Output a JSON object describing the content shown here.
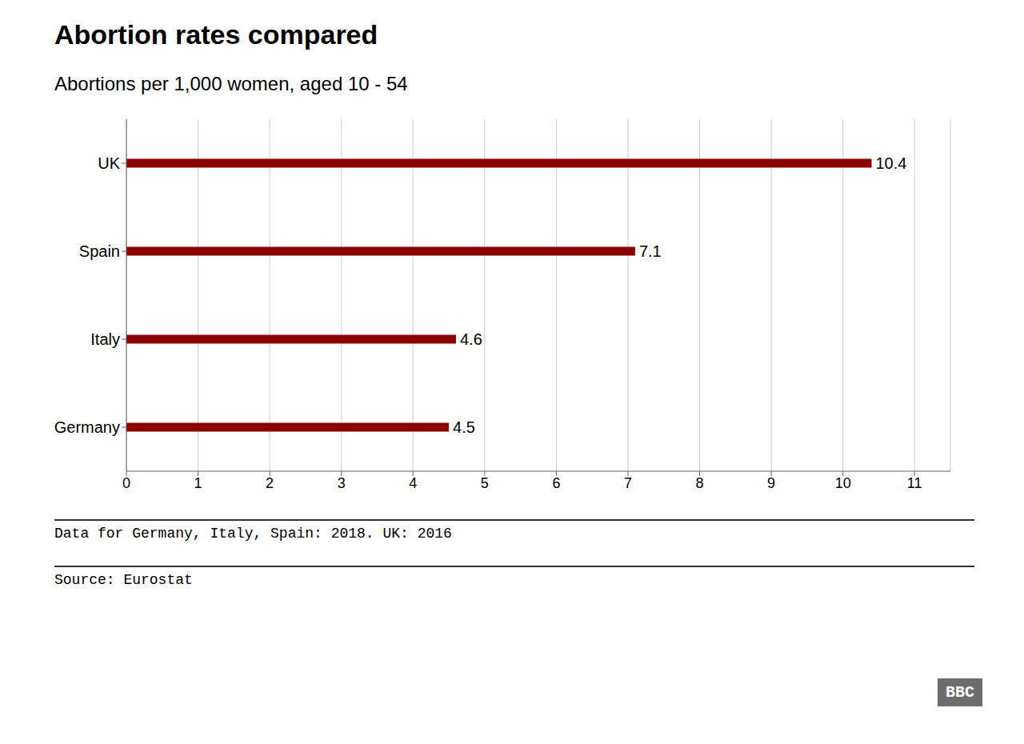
{
  "chart_data": {
    "type": "bar",
    "orientation": "horizontal",
    "title": "Abortion rates compared",
    "subtitle": "Abortions per 1,000 women, aged 10 - 54",
    "categories": [
      "UK",
      "Spain",
      "Italy",
      "Germany"
    ],
    "values": [
      10.4,
      7.1,
      4.6,
      4.5
    ],
    "color": "#8B0000",
    "xlim": [
      0,
      11.5
    ],
    "xticks": [
      0,
      1,
      2,
      3,
      4,
      5,
      6,
      7,
      8,
      9,
      10,
      11
    ],
    "grid": true,
    "data_labels": true,
    "annotations": [
      "Data for Germany, Italy, Spain: 2018. UK: 2016",
      "Source: Eurostat",
      "BBC"
    ]
  }
}
